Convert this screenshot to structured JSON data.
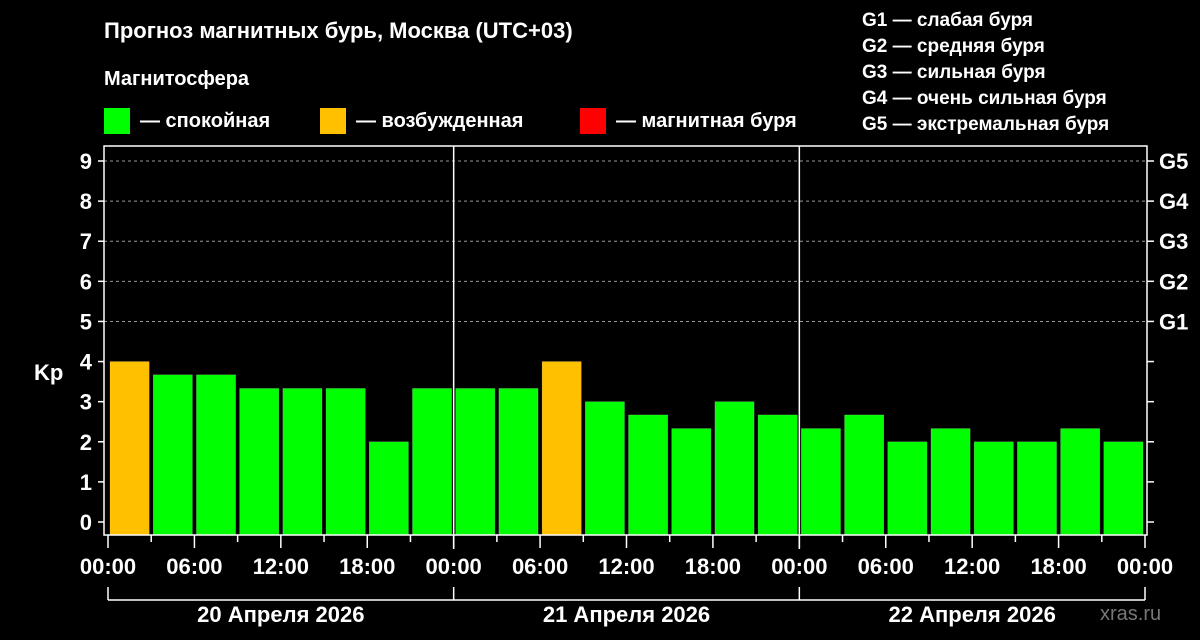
{
  "title": "Прогноз магнитных бурь, Москва (UTC+03)",
  "legend": {
    "title": "Магнитосфера",
    "items": [
      {
        "label": "— спокойная",
        "color": "#00ff00"
      },
      {
        "label": "— возбужденная",
        "color": "#ffc000"
      },
      {
        "label": "— магнитная буря",
        "color": "#ff0000"
      }
    ]
  },
  "g_legend": [
    "G1 — слабая буря",
    "G2 — средняя буря",
    "G3 — сильная буря",
    "G4 — очень сильная буря",
    "G5 — экстремальная буря"
  ],
  "watermark": "xras.ru",
  "chart_data": {
    "type": "bar",
    "ylabel": "Kp",
    "ylim": [
      0,
      9
    ],
    "yticks": [
      "0",
      "1",
      "2",
      "3",
      "4",
      "5",
      "6",
      "7",
      "8",
      "9"
    ],
    "right_ticks": {
      "5": "G1",
      "6": "G2",
      "7": "G3",
      "8": "G4",
      "9": "G5"
    },
    "grid": "dashed horizontal at 5-9",
    "xticks": [
      "00:00",
      "06:00",
      "12:00",
      "18:00",
      "00:00",
      "06:00",
      "12:00",
      "18:00",
      "00:00",
      "06:00",
      "12:00",
      "18:00",
      "00:00"
    ],
    "days": [
      "20 Апреля 2026",
      "21 Апреля 2026",
      "22 Апреля 2026"
    ],
    "interval_hours": 3,
    "values": [
      4,
      3.67,
      3.67,
      3.33,
      3.33,
      3.33,
      2,
      3.33,
      3.33,
      3.33,
      4,
      3,
      2.67,
      2.33,
      3,
      2.67,
      2.33,
      2.67,
      2,
      2.33,
      2,
      2,
      2.33,
      2
    ],
    "colors": {
      "quiet": "#00ff00",
      "active": "#ffc000",
      "storm": "#ff0000"
    }
  }
}
